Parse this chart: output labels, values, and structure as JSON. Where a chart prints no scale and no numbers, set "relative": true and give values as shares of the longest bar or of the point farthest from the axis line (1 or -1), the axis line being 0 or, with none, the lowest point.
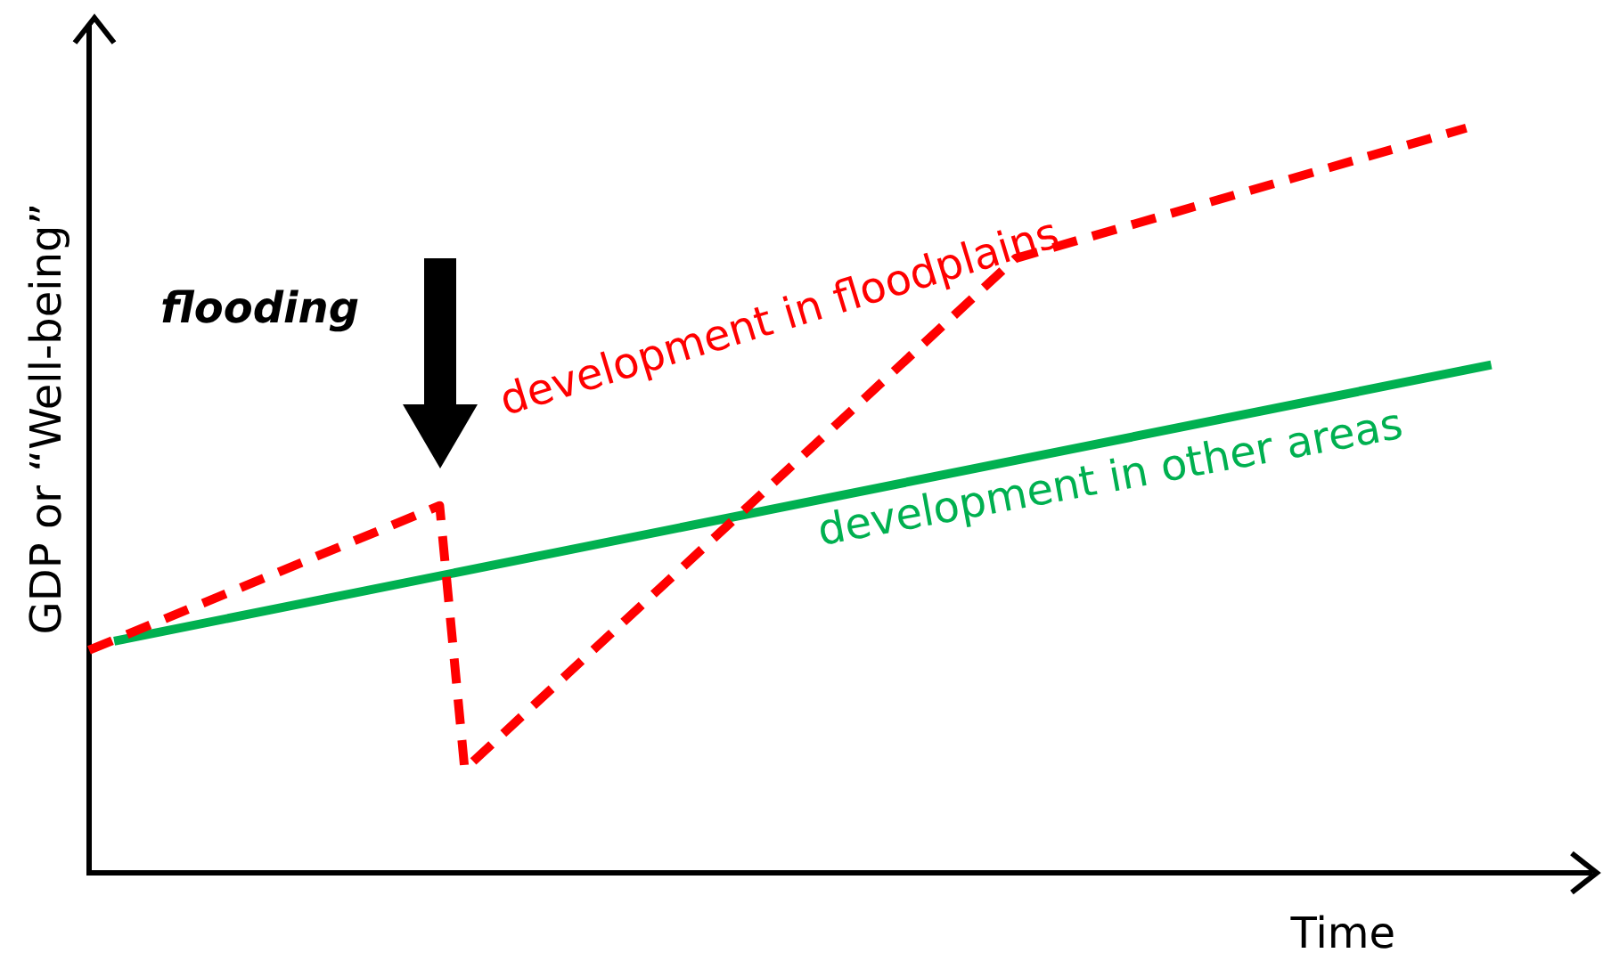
{
  "chart_data": {
    "type": "line",
    "relative": true,
    "xlabel": "Time",
    "ylabel": "GDP or “Well-being”",
    "annotations": [
      "flooding"
    ],
    "tick_labels": false,
    "grid": false,
    "legend": false,
    "marker": "none",
    "categories": [
      null,
      null,
      null,
      null,
      null,
      null,
      null,
      null,
      null,
      null,
      null,
      null,
      null,
      null,
      null,
      null,
      null,
      null,
      null,
      null,
      null,
      null,
      null,
      null,
      null,
      null,
      null,
      null,
      null,
      null,
      null,
      null,
      null,
      null,
      null,
      null,
      null,
      null,
      null,
      null,
      null,
      null,
      null,
      null,
      null,
      null,
      null,
      null,
      null,
      null,
      null,
      null,
      null,
      null,
      null,
      null,
      null,
      null,
      null,
      null,
      null
    ],
    "series": [
      {
        "name": "development in floodplains",
        "color": "#ff0000",
        "line_style": "dashed",
        "values": [
          0.299,
          null,
          null,
          null,
          null,
          null,
          null,
          null,
          null,
          null,
          null,
          null,
          null,
          null,
          0.493,
          0.139,
          null,
          null,
          null,
          null,
          null,
          null,
          null,
          null,
          null,
          null,
          null,
          null,
          null,
          null,
          null,
          null,
          null,
          null,
          null,
          null,
          null,
          0.825,
          null,
          null,
          null,
          null,
          null,
          null,
          null,
          null,
          null,
          null,
          null,
          null,
          null,
          null,
          null,
          null,
          null,
          1,
          null,
          null,
          null,
          null,
          null
        ]
      },
      {
        "name": "development in other areas",
        "color": "#00b050",
        "line_style": "solid",
        "values": [
          null,
          0.311,
          null,
          null,
          null,
          null,
          null,
          null,
          null,
          null,
          null,
          null,
          null,
          null,
          null,
          null,
          null,
          null,
          null,
          null,
          null,
          null,
          null,
          null,
          null,
          null,
          null,
          null,
          null,
          null,
          null,
          null,
          null,
          null,
          null,
          null,
          null,
          null,
          null,
          null,
          null,
          null,
          null,
          null,
          null,
          null,
          null,
          null,
          null,
          null,
          null,
          null,
          null,
          null,
          null,
          null,
          0.682,
          null,
          null,
          null,
          null
        ]
      }
    ]
  }
}
